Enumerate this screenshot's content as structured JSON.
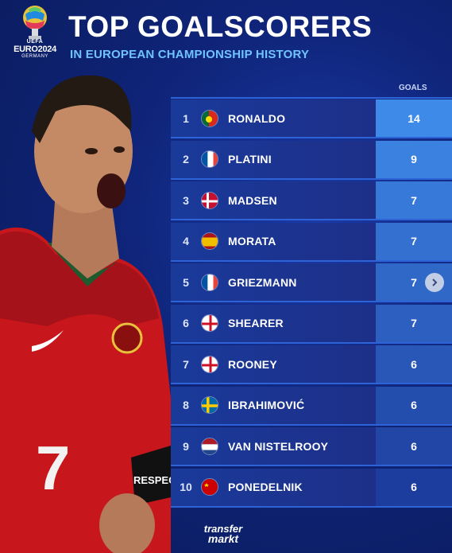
{
  "header": {
    "title": "TOP GOALSCORERS",
    "subtitle": "IN EUROPEAN CHAMPIONSHIP HISTORY",
    "goals_label": "GOALS",
    "logo": {
      "uefa": "UEFA",
      "euro": "EURO2024",
      "country": "GERMANY"
    }
  },
  "player_shirt": {
    "number": "7",
    "armband": "RESPEC"
  },
  "scorers": [
    {
      "rank": "1",
      "name": "RONALDO",
      "goals": "14",
      "flag": "portugal"
    },
    {
      "rank": "2",
      "name": "PLATINI",
      "goals": "9",
      "flag": "france"
    },
    {
      "rank": "3",
      "name": "MADSEN",
      "goals": "7",
      "flag": "denmark"
    },
    {
      "rank": "4",
      "name": "MORATA",
      "goals": "7",
      "flag": "spain"
    },
    {
      "rank": "5",
      "name": "GRIEZMANN",
      "goals": "7",
      "flag": "france"
    },
    {
      "rank": "6",
      "name": "SHEARER",
      "goals": "7",
      "flag": "england"
    },
    {
      "rank": "7",
      "name": "ROONEY",
      "goals": "6",
      "flag": "england"
    },
    {
      "rank": "8",
      "name": "IBRAHIMOVIĆ",
      "goals": "6",
      "flag": "sweden"
    },
    {
      "rank": "9",
      "name": "VAN NISTELROOY",
      "goals": "6",
      "flag": "netherlands"
    },
    {
      "rank": "10",
      "name": "PONEDELNIK",
      "goals": "6",
      "flag": "soviet-union"
    }
  ],
  "footer": {
    "brand_line1": "transfer",
    "brand_line2": "markt"
  },
  "colors": {
    "background": "#0f2478",
    "subtitle": "#6fc3ff",
    "row_border": "#2e63d8",
    "goals_shade_top": "#3e8ae8",
    "goals_shade_bottom": "#1d3d9e"
  },
  "icons": {
    "next": "chevron-right-icon"
  }
}
